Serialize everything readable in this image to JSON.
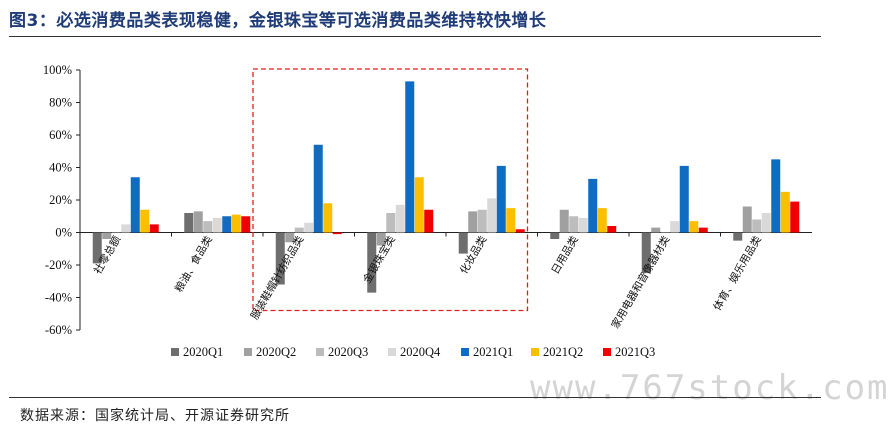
{
  "title": "图3：必选消费品类表现稳健，金银珠宝等可选消费品类维持较快增长",
  "source": "数据来源：国家统计局、开源证券研究所",
  "watermark": "www.767stock.com",
  "colors": {
    "title": "#1f3b78",
    "highlight_box": "#e21f1f",
    "series": [
      "#6e6e6e",
      "#a0a0a0",
      "#bdbdbd",
      "#d9d9d9",
      "#0f6cc0",
      "#fcbf00",
      "#f00000"
    ]
  },
  "chart_data": {
    "type": "bar",
    "title": "",
    "xlabel": "",
    "ylabel": "",
    "ylim": [
      -60,
      100
    ],
    "yticks": [
      -60,
      -40,
      -20,
      0,
      20,
      40,
      60,
      80,
      100
    ],
    "ytick_labels": [
      "-60%",
      "-40%",
      "-20%",
      "0%",
      "20%",
      "40%",
      "60%",
      "80%",
      "100%"
    ],
    "unit": "%",
    "grid": false,
    "legend_position": "bottom",
    "highlighted_categories": [
      "服装鞋帽针纺织品类",
      "金银珠宝类",
      "化妆品类"
    ],
    "categories": [
      "社零总额",
      "粮油、食品类",
      "服装鞋帽针纺织品类",
      "金银珠宝类",
      "化妆品类",
      "日用品类",
      "家用电器和音像器材类",
      "体育、娱乐用品类"
    ],
    "series": [
      {
        "name": "2020Q1",
        "values": [
          -19,
          12,
          -32,
          -37,
          -13,
          -4,
          -25,
          -5
        ]
      },
      {
        "name": "2020Q2",
        "values": [
          -4,
          13,
          -6,
          -8,
          13,
          14,
          3,
          16
        ]
      },
      {
        "name": "2020Q3",
        "values": [
          0,
          7,
          3,
          12,
          14,
          10,
          0,
          8
        ]
      },
      {
        "name": "2020Q4",
        "values": [
          5,
          9,
          6,
          17,
          21,
          9,
          7,
          12
        ]
      },
      {
        "name": "2021Q1",
        "values": [
          34,
          10,
          54,
          93,
          41,
          33,
          41,
          45
        ]
      },
      {
        "name": "2021Q2",
        "values": [
          14,
          11,
          18,
          34,
          15,
          15,
          7,
          25
        ]
      },
      {
        "name": "2021Q3",
        "values": [
          5,
          10,
          -1,
          14,
          2,
          4,
          3,
          19
        ]
      }
    ]
  }
}
